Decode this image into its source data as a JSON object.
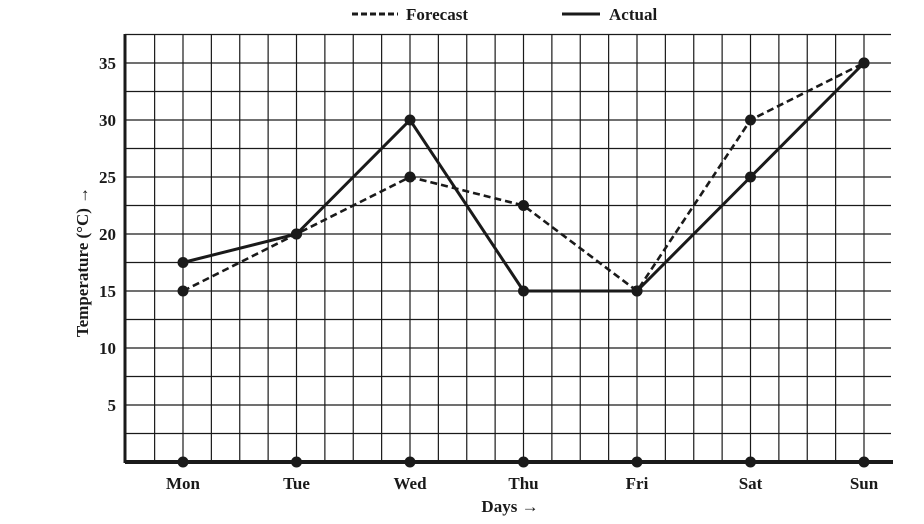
{
  "chart_data": {
    "type": "line",
    "categories": [
      "Mon",
      "Tue",
      "Wed",
      "Thu",
      "Fri",
      "Sat",
      "Sun"
    ],
    "series": [
      {
        "name": "Forecast",
        "style": "dashed",
        "values": [
          15,
          20,
          25,
          22.5,
          15,
          30,
          35
        ]
      },
      {
        "name": "Actual",
        "style": "solid",
        "values": [
          17.5,
          20,
          30,
          15,
          15,
          25,
          35
        ]
      }
    ],
    "xlabel": "Days →",
    "ylabel": "Temperature (°C) →",
    "yticks": [
      5,
      10,
      15,
      20,
      25,
      30,
      35
    ],
    "ylim": [
      0,
      37.5
    ],
    "grid": true,
    "legend_position": "top-center",
    "line_color": "#1a1a1a"
  }
}
